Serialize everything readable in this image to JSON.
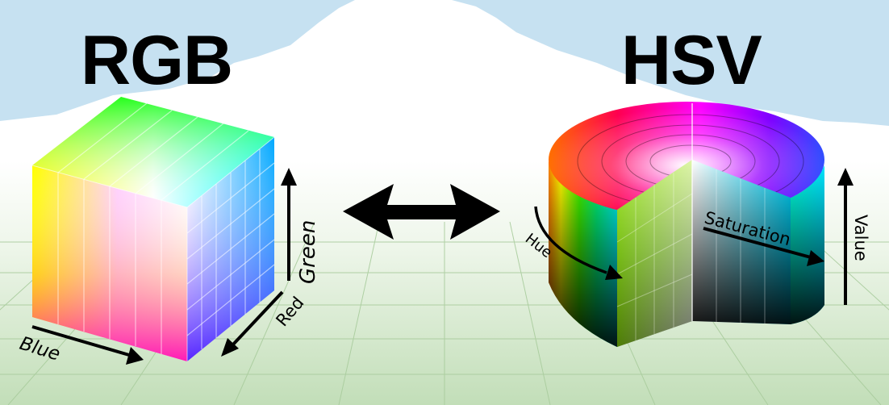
{
  "titles": {
    "rgb": "RGB",
    "hsv": "HSV"
  },
  "rgb_axes": {
    "blue": "Blue",
    "red": "Red",
    "green": "Green"
  },
  "hsv_axes": {
    "hue": "Hue",
    "saturation": "Saturation",
    "value": "Value"
  },
  "colors": {
    "sky": "#c6e1f1",
    "mountain": "#ffffff",
    "ground_top": "#ffffff",
    "ground_bottom": "#c2deb8",
    "grid_line": "#a9cc9d",
    "arrow": "#000000"
  },
  "icons": {
    "conversion": "double-headed-arrow"
  }
}
